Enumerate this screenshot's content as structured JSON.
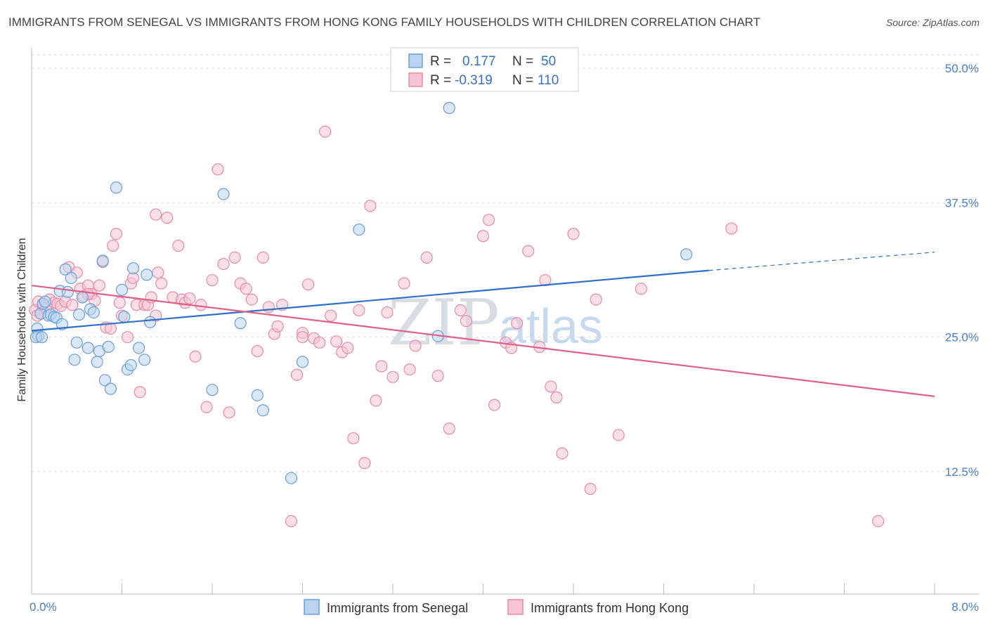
{
  "title": "IMMIGRANTS FROM SENEGAL VS IMMIGRANTS FROM HONG KONG FAMILY HOUSEHOLDS WITH CHILDREN CORRELATION CHART",
  "source": "Source: ZipAtlas.com",
  "watermark": {
    "zip": "ZIP",
    "atlas": "atlas"
  },
  "legend": {
    "rows": [
      {
        "r_label": "R =",
        "r_value": "0.177",
        "n_label": "N =",
        "n_value": "50"
      },
      {
        "r_label": "R =",
        "r_value": "-0.319",
        "n_label": "N =",
        "n_value": "110"
      }
    ]
  },
  "colors": {
    "senegal": "#6a9fd8",
    "senegal_fill": "#b9d3f0",
    "senegal_line": "#2f6fc9",
    "hongkong": "#e88aa8",
    "hongkong_fill": "#f6c4d3",
    "hongkong_line": "#e0608a",
    "axis_text": "#4a7fc8",
    "grid": "#dddddd"
  },
  "chart_data": {
    "type": "scatter",
    "title": "IMMIGRANTS FROM SENEGAL VS IMMIGRANTS FROM HONG KONG FAMILY HOUSEHOLDS WITH CHILDREN CORRELATION CHART",
    "xlabel": "",
    "ylabel": "Family Households with Children",
    "xlim": [
      0,
      8
    ],
    "ylim": [
      0,
      52
    ],
    "x_tick_labels": [
      "0.0%",
      "8.0%"
    ],
    "y_ticks": [
      12.5,
      25,
      37.5,
      50
    ],
    "y_tick_labels": [
      "12.5%",
      "25.0%",
      "37.5%",
      "50.0%"
    ],
    "grid": "horizontal dashed",
    "legend_position": "bottom",
    "series": [
      {
        "name": "Immigrants from Senegal",
        "color": "#6a9fd8",
        "trend": {
          "x0": 0,
          "y0": 25.6,
          "x1": 6.0,
          "y1": 31.2,
          "dashed_to_x": 8.0,
          "dashed_to_y": 32.9
        },
        "points": [
          [
            0.05,
            25.8
          ],
          [
            0.06,
            25.1
          ],
          [
            0.08,
            27.2
          ],
          [
            0.1,
            28.1
          ],
          [
            0.12,
            28.3
          ],
          [
            0.15,
            27.0
          ],
          [
            0.17,
            27.1
          ],
          [
            0.2,
            26.9
          ],
          [
            0.22,
            26.8
          ],
          [
            0.25,
            29.3
          ],
          [
            0.27,
            26.2
          ],
          [
            0.3,
            31.3
          ],
          [
            0.32,
            29.2
          ],
          [
            0.35,
            30.5
          ],
          [
            0.38,
            22.9
          ],
          [
            0.4,
            24.5
          ],
          [
            0.42,
            27.1
          ],
          [
            0.45,
            28.7
          ],
          [
            0.5,
            24.0
          ],
          [
            0.52,
            27.6
          ],
          [
            0.55,
            27.3
          ],
          [
            0.58,
            22.7
          ],
          [
            0.6,
            23.7
          ],
          [
            0.63,
            32.1
          ],
          [
            0.65,
            21.0
          ],
          [
            0.68,
            24.1
          ],
          [
            0.7,
            20.2
          ],
          [
            0.75,
            38.9
          ],
          [
            0.8,
            29.4
          ],
          [
            0.82,
            26.9
          ],
          [
            0.85,
            22.0
          ],
          [
            0.88,
            22.4
          ],
          [
            0.9,
            31.4
          ],
          [
            0.95,
            24.0
          ],
          [
            1.0,
            22.9
          ],
          [
            1.02,
            30.8
          ],
          [
            1.05,
            26.4
          ],
          [
            1.6,
            20.1
          ],
          [
            1.7,
            38.3
          ],
          [
            1.85,
            26.3
          ],
          [
            2.0,
            19.6
          ],
          [
            2.05,
            18.2
          ],
          [
            2.3,
            11.9
          ],
          [
            2.4,
            22.7
          ],
          [
            2.9,
            35.0
          ],
          [
            3.6,
            25.1
          ],
          [
            3.7,
            46.3
          ],
          [
            5.8,
            32.7
          ],
          [
            0.04,
            25.0
          ],
          [
            0.09,
            25.0
          ]
        ]
      },
      {
        "name": "Immigrants from Hong Kong",
        "color": "#e88aa8",
        "trend": {
          "x0": 0,
          "y0": 29.8,
          "x1": 8.0,
          "y1": 19.5
        },
        "points": [
          [
            0.03,
            27.5
          ],
          [
            0.06,
            28.3
          ],
          [
            0.08,
            27.2
          ],
          [
            0.1,
            28.0
          ],
          [
            0.13,
            27.8
          ],
          [
            0.16,
            28.5
          ],
          [
            0.2,
            28.2
          ],
          [
            0.23,
            28.1
          ],
          [
            0.26,
            27.9
          ],
          [
            0.3,
            28.3
          ],
          [
            0.33,
            31.5
          ],
          [
            0.36,
            28.0
          ],
          [
            0.4,
            31.0
          ],
          [
            0.43,
            29.5
          ],
          [
            0.46,
            28.8
          ],
          [
            0.5,
            29.8
          ],
          [
            0.53,
            29.0
          ],
          [
            0.56,
            28.4
          ],
          [
            0.6,
            29.8
          ],
          [
            0.63,
            32.0
          ],
          [
            0.66,
            25.9
          ],
          [
            0.7,
            25.8
          ],
          [
            0.72,
            33.5
          ],
          [
            0.75,
            34.6
          ],
          [
            0.78,
            28.2
          ],
          [
            0.8,
            27.0
          ],
          [
            0.85,
            25.0
          ],
          [
            0.88,
            30.0
          ],
          [
            0.9,
            30.5
          ],
          [
            0.93,
            28.0
          ],
          [
            0.96,
            19.9
          ],
          [
            1.0,
            28.0
          ],
          [
            1.03,
            28.0
          ],
          [
            1.06,
            28.7
          ],
          [
            1.1,
            36.4
          ],
          [
            1.12,
            31.0
          ],
          [
            1.15,
            30.0
          ],
          [
            1.2,
            36.1
          ],
          [
            1.25,
            28.7
          ],
          [
            1.3,
            33.5
          ],
          [
            1.33,
            28.5
          ],
          [
            1.36,
            28.2
          ],
          [
            1.4,
            28.6
          ],
          [
            1.45,
            23.2
          ],
          [
            1.5,
            28.0
          ],
          [
            1.55,
            18.5
          ],
          [
            1.6,
            30.3
          ],
          [
            1.65,
            40.6
          ],
          [
            1.7,
            31.8
          ],
          [
            1.75,
            18.0
          ],
          [
            1.8,
            32.4
          ],
          [
            1.85,
            30.0
          ],
          [
            1.9,
            29.5
          ],
          [
            1.95,
            28.5
          ],
          [
            2.0,
            23.7
          ],
          [
            2.05,
            32.4
          ],
          [
            2.1,
            27.8
          ],
          [
            2.15,
            25.3
          ],
          [
            2.18,
            26.0
          ],
          [
            2.22,
            28.0
          ],
          [
            2.3,
            7.9
          ],
          [
            2.35,
            21.5
          ],
          [
            2.4,
            25.4
          ],
          [
            2.45,
            29.9
          ],
          [
            2.5,
            24.9
          ],
          [
            2.55,
            24.5
          ],
          [
            2.6,
            44.1
          ],
          [
            2.65,
            27.0
          ],
          [
            2.7,
            24.6
          ],
          [
            2.75,
            23.6
          ],
          [
            2.8,
            24.0
          ],
          [
            2.85,
            15.6
          ],
          [
            2.9,
            27.5
          ],
          [
            2.95,
            13.3
          ],
          [
            3.0,
            37.2
          ],
          [
            3.05,
            19.1
          ],
          [
            3.1,
            22.3
          ],
          [
            3.15,
            27.3
          ],
          [
            3.2,
            21.3
          ],
          [
            3.3,
            30.0
          ],
          [
            3.35,
            22.0
          ],
          [
            3.4,
            24.2
          ],
          [
            3.5,
            32.4
          ],
          [
            3.6,
            21.4
          ],
          [
            3.7,
            16.5
          ],
          [
            3.8,
            27.5
          ],
          [
            3.85,
            26.5
          ],
          [
            4.0,
            34.4
          ],
          [
            4.05,
            35.9
          ],
          [
            4.1,
            18.7
          ],
          [
            4.2,
            24.5
          ],
          [
            4.25,
            24.0
          ],
          [
            4.3,
            26.3
          ],
          [
            4.4,
            33.0
          ],
          [
            4.5,
            24.1
          ],
          [
            4.55,
            30.3
          ],
          [
            4.6,
            20.4
          ],
          [
            4.65,
            19.4
          ],
          [
            4.7,
            14.2
          ],
          [
            4.8,
            34.6
          ],
          [
            4.95,
            10.9
          ],
          [
            5.0,
            28.5
          ],
          [
            5.2,
            15.9
          ],
          [
            5.4,
            29.5
          ],
          [
            6.2,
            35.1
          ],
          [
            7.5,
            7.9
          ],
          [
            0.05,
            27.0
          ],
          [
            0.5,
            29.0
          ],
          [
            1.1,
            27.0
          ],
          [
            2.4,
            25.0
          ]
        ]
      }
    ]
  },
  "bottom_legend": {
    "senegal": "Immigrants from Senegal",
    "hongkong": "Immigrants from Hong Kong"
  }
}
